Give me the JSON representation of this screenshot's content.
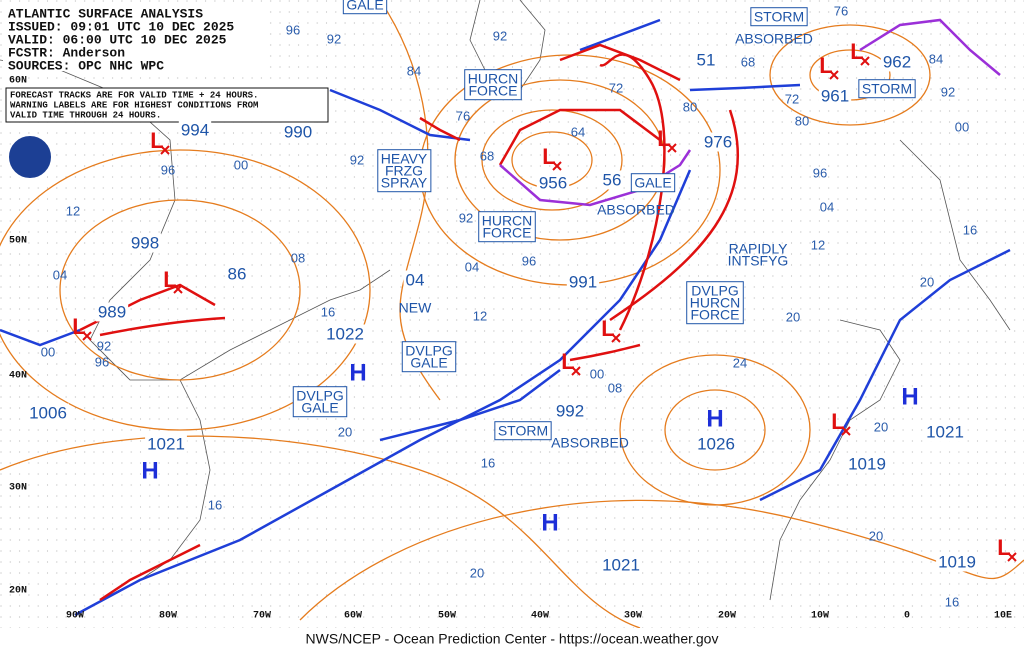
{
  "header": {
    "lines": [
      "ATLANTIC SURFACE ANALYSIS",
      "ISSUED: 09:01 UTC 10 DEC 2025",
      "VALID:  06:00 UTC 10 DEC 2025",
      "FCSTR:  Anderson",
      "SOURCES: OPC NHC WPC"
    ]
  },
  "notice": {
    "lines": [
      "FORECAST TRACKS ARE FOR VALID TIME + 24 HOURS.",
      "WARNING LABELS ARE FOR HIGHEST CONDITIONS FROM",
      "VALID TIME THROUGH 24 HOURS."
    ]
  },
  "footer": "NWS/NCEP - Ocean Prediction Center - https://ocean.weather.gov",
  "longitudes": [
    "90W",
    "80W",
    "70W",
    "60W",
    "50W",
    "40W",
    "30W",
    "20W",
    "10W",
    "0",
    "10E"
  ],
  "latitudes": [
    "60N",
    "50N",
    "40N",
    "30N",
    "20N"
  ],
  "highs": [
    "H",
    "H",
    "H",
    "H",
    "H"
  ],
  "lows": [
    "L",
    "L",
    "L",
    "L",
    "L",
    "L",
    "L",
    "L",
    "L",
    "L",
    "L"
  ],
  "pressure_labels": [
    "994",
    "990",
    "998",
    "86",
    "989",
    "1006",
    "1021",
    "1022",
    "04",
    "956",
    "56",
    "976",
    "991",
    "992",
    "1026",
    "1021",
    "51",
    "961",
    "962",
    "1019",
    "1021",
    "1019"
  ],
  "warnings": [
    {
      "lines": [
        "GALE"
      ]
    },
    {
      "lines": [
        "HURCN",
        "FORCE"
      ]
    },
    {
      "lines": [
        "HEAVY",
        "FRZG",
        "SPRAY"
      ]
    },
    {
      "lines": [
        "HURCN",
        "FORCE"
      ]
    },
    {
      "lines": [
        "GALE"
      ]
    },
    {
      "lines": [
        "ABSORBED"
      ]
    },
    {
      "lines": [
        "STORM"
      ]
    },
    {
      "lines": [
        "ABSORBED"
      ]
    },
    {
      "lines": [
        "STORM"
      ]
    },
    {
      "lines": [
        "RAPIDLY",
        "INTSFYG"
      ]
    },
    {
      "lines": [
        "DVLPG",
        "HURCN",
        "FORCE"
      ]
    },
    {
      "lines": [
        "NEW"
      ]
    },
    {
      "lines": [
        "DVLPG",
        "GALE"
      ]
    },
    {
      "lines": [
        "DVLPG",
        "GALE"
      ]
    },
    {
      "lines": [
        "STORM"
      ]
    },
    {
      "lines": [
        "ABSORBED"
      ]
    }
  ],
  "isobar_labels": [
    "96",
    "92",
    "84",
    "76",
    "68",
    "64",
    "72",
    "80",
    "92",
    "92",
    "00",
    "96",
    "12",
    "04",
    "00",
    "92",
    "96",
    "08",
    "16",
    "92",
    "96",
    "04",
    "12",
    "00",
    "08",
    "20",
    "16",
    "20",
    "24",
    "20",
    "12",
    "04",
    "96",
    "80",
    "72",
    "68",
    "76",
    "84",
    "92",
    "20",
    "16",
    "20",
    "20",
    "16",
    "16",
    "00"
  ]
}
